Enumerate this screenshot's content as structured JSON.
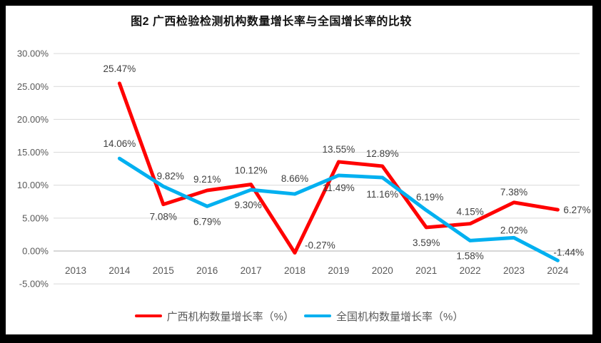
{
  "title": "图2 广西检验检测机构数量增长率与全国增长率的比较",
  "frame": {
    "border_color": "#000000",
    "background": "#ffffff"
  },
  "chart_data": {
    "type": "line",
    "title": "图2 广西检验检测机构数量增长率与全国增长率的比较",
    "x": [
      "2013",
      "2014",
      "2015",
      "2016",
      "2017",
      "2018",
      "2019",
      "2020",
      "2021",
      "2022",
      "2023",
      "2024"
    ],
    "ylim": [
      -5,
      30
    ],
    "ytick_step": 5,
    "grid": true,
    "legend_position": "bottom",
    "grid_color": "#D9D9D9",
    "axis_line_color": "#BFBFBF",
    "tick_color": "#595959",
    "data_label_color": "#404040",
    "yticks": [
      {
        "v": 30,
        "label": "30.00%"
      },
      {
        "v": 25,
        "label": "25.00%"
      },
      {
        "v": 20,
        "label": "20.00%"
      },
      {
        "v": 15,
        "label": "15.00%"
      },
      {
        "v": 10,
        "label": "10.00%"
      },
      {
        "v": 5,
        "label": "5.00%"
      },
      {
        "v": 0,
        "label": "0.00%"
      },
      {
        "v": -5,
        "label": "-5.00%"
      }
    ],
    "series": [
      {
        "name": "广西机构数量增长率（%）",
        "color": "#FF0000",
        "points": [
          {
            "x": "2014",
            "v": 25.47,
            "label": "25.47%",
            "dx": 0,
            "dy": -16,
            "anchor": "middle"
          },
          {
            "x": "2015",
            "v": 7.08,
            "label": "7.08%",
            "dx": 0,
            "dy": 22,
            "anchor": "middle"
          },
          {
            "x": "2016",
            "v": 9.21,
            "label": "9.21%",
            "dx": 0,
            "dy": -11,
            "anchor": "middle"
          },
          {
            "x": "2017",
            "v": 10.12,
            "label": "10.12%",
            "dx": 0,
            "dy": -15,
            "anchor": "middle"
          },
          {
            "x": "2018",
            "v": -0.27,
            "label": "-0.27%",
            "dx": 14,
            "dy": -6,
            "anchor": "start"
          },
          {
            "x": "2019",
            "v": 13.55,
            "label": "13.55%",
            "dx": 0,
            "dy": -13,
            "anchor": "middle"
          },
          {
            "x": "2020",
            "v": 12.89,
            "label": "12.89%",
            "dx": 0,
            "dy": -13,
            "anchor": "middle"
          },
          {
            "x": "2021",
            "v": 3.59,
            "label": "3.59%",
            "dx": 0,
            "dy": 26,
            "anchor": "middle"
          },
          {
            "x": "2022",
            "v": 4.15,
            "label": "4.15%",
            "dx": 0,
            "dy": -12,
            "anchor": "middle"
          },
          {
            "x": "2023",
            "v": 7.38,
            "label": "7.38%",
            "dx": 0,
            "dy": -10,
            "anchor": "middle"
          },
          {
            "x": "2024",
            "v": 6.27,
            "label": "6.27%",
            "dx": 8,
            "dy": 5,
            "anchor": "start"
          }
        ]
      },
      {
        "name": "全国机构数量增长率（%）",
        "color": "#00B0F0",
        "points": [
          {
            "x": "2014",
            "v": 14.06,
            "label": "14.06%",
            "dx": 0,
            "dy": -16,
            "anchor": "middle"
          },
          {
            "x": "2015",
            "v": 9.82,
            "label": "9.82%",
            "dx": 10,
            "dy": -10,
            "anchor": "middle"
          },
          {
            "x": "2016",
            "v": 6.79,
            "label": "6.79%",
            "dx": 0,
            "dy": 26,
            "anchor": "middle"
          },
          {
            "x": "2017",
            "v": 9.3,
            "label": "9.30%",
            "dx": -4,
            "dy": 26,
            "anchor": "middle"
          },
          {
            "x": "2018",
            "v": 8.66,
            "label": "8.66%",
            "dx": 0,
            "dy": -17,
            "anchor": "middle"
          },
          {
            "x": "2019",
            "v": 11.49,
            "label": "11.49%",
            "dx": 0,
            "dy": 22,
            "anchor": "middle"
          },
          {
            "x": "2020",
            "v": 11.16,
            "label": "11.16%",
            "dx": 0,
            "dy": 28,
            "anchor": "middle"
          },
          {
            "x": "2021",
            "v": 6.19,
            "label": "6.19%",
            "dx": 5,
            "dy": -14,
            "anchor": "middle"
          },
          {
            "x": "2022",
            "v": 1.58,
            "label": "1.58%",
            "dx": 0,
            "dy": 26,
            "anchor": "middle"
          },
          {
            "x": "2023",
            "v": 2.02,
            "label": "2.02%",
            "dx": 0,
            "dy": -6,
            "anchor": "middle"
          },
          {
            "x": "2024",
            "v": -1.44,
            "label": "-1.44%",
            "dx": -6,
            "dy": -7,
            "anchor": "start"
          }
        ]
      }
    ]
  }
}
